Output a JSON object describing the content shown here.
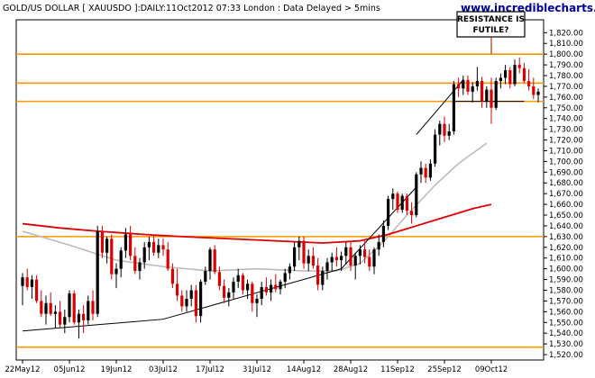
{
  "chart_data": {
    "type": "candlestick",
    "title": "GOLD/US DOLLAR [ XAUUSDO ]:DAILY:11Oct2012 07:33 London : Data Delayed > 5mins",
    "source": "www.incrediblecharts.com",
    "annotation": [
      "RESISTANCE IS",
      "FUTILE?"
    ],
    "ylim": [
      1515,
      1832
    ],
    "y_ticks": [
      1520,
      1530,
      1540,
      1550,
      1560,
      1570,
      1580,
      1590,
      1600,
      1610,
      1620,
      1630,
      1640,
      1650,
      1660,
      1670,
      1680,
      1690,
      1700,
      1710,
      1720,
      1730,
      1740,
      1750,
      1760,
      1770,
      1780,
      1790,
      1800,
      1810,
      1820
    ],
    "x_ticks": [
      "22May12",
      "05Jun12",
      "19Jun12",
      "03Jul12",
      "17Jul12",
      "31Jul12",
      "14Aug12",
      "28Aug12",
      "11Sep12",
      "25Sep12",
      "09Oct12"
    ],
    "grid": false,
    "up_color": "#000000",
    "down_color": "#dd0000",
    "candles": [
      [
        1584,
        1596,
        1566,
        1592
      ],
      [
        1592,
        1600,
        1580,
        1583
      ],
      [
        1583,
        1594,
        1572,
        1590
      ],
      [
        1590,
        1594,
        1568,
        1570
      ],
      [
        1570,
        1580,
        1555,
        1558
      ],
      [
        1558,
        1575,
        1548,
        1568
      ],
      [
        1568,
        1578,
        1556,
        1558
      ],
      [
        1558,
        1566,
        1545,
        1560
      ],
      [
        1560,
        1570,
        1545,
        1548
      ],
      [
        1548,
        1562,
        1540,
        1555
      ],
      [
        1555,
        1580,
        1550,
        1577
      ],
      [
        1577,
        1580,
        1548,
        1550
      ],
      [
        1550,
        1562,
        1535,
        1558
      ],
      [
        1558,
        1566,
        1540,
        1552
      ],
      [
        1552,
        1575,
        1548,
        1570
      ],
      [
        1570,
        1580,
        1552,
        1558
      ],
      [
        1558,
        1640,
        1555,
        1635
      ],
      [
        1635,
        1640,
        1610,
        1615
      ],
      [
        1615,
        1630,
        1605,
        1628
      ],
      [
        1628,
        1632,
        1590,
        1595
      ],
      [
        1595,
        1605,
        1582,
        1600
      ],
      [
        1600,
        1620,
        1592,
        1617
      ],
      [
        1617,
        1638,
        1610,
        1632
      ],
      [
        1632,
        1640,
        1608,
        1612
      ],
      [
        1612,
        1620,
        1595,
        1598
      ],
      [
        1598,
        1610,
        1590,
        1606
      ],
      [
        1606,
        1625,
        1600,
        1620
      ],
      [
        1620,
        1630,
        1608,
        1625
      ],
      [
        1625,
        1632,
        1612,
        1615
      ],
      [
        1615,
        1628,
        1610,
        1622
      ],
      [
        1622,
        1628,
        1612,
        1618
      ],
      [
        1618,
        1625,
        1598,
        1600
      ],
      [
        1600,
        1605,
        1582,
        1586
      ],
      [
        1586,
        1600,
        1570,
        1575
      ],
      [
        1575,
        1580,
        1560,
        1565
      ],
      [
        1565,
        1580,
        1560,
        1572
      ],
      [
        1572,
        1585,
        1565,
        1580
      ],
      [
        1580,
        1585,
        1550,
        1556
      ],
      [
        1556,
        1590,
        1550,
        1588
      ],
      [
        1588,
        1602,
        1585,
        1598
      ],
      [
        1598,
        1620,
        1590,
        1618
      ],
      [
        1618,
        1622,
        1595,
        1597
      ],
      [
        1597,
        1602,
        1580,
        1584
      ],
      [
        1584,
        1590,
        1568,
        1573
      ],
      [
        1573,
        1582,
        1565,
        1578
      ],
      [
        1578,
        1592,
        1572,
        1588
      ],
      [
        1588,
        1600,
        1582,
        1594
      ],
      [
        1594,
        1596,
        1576,
        1580
      ],
      [
        1580,
        1590,
        1572,
        1586
      ],
      [
        1586,
        1588,
        1560,
        1568
      ],
      [
        1568,
        1576,
        1555,
        1572
      ],
      [
        1572,
        1588,
        1566,
        1583
      ],
      [
        1583,
        1592,
        1575,
        1578
      ],
      [
        1578,
        1590,
        1570,
        1585
      ],
      [
        1585,
        1595,
        1578,
        1581
      ],
      [
        1581,
        1590,
        1576,
        1588
      ],
      [
        1588,
        1600,
        1582,
        1596
      ],
      [
        1596,
        1605,
        1590,
        1602
      ],
      [
        1602,
        1625,
        1598,
        1620
      ],
      [
        1620,
        1630,
        1608,
        1626
      ],
      [
        1626,
        1630,
        1600,
        1605
      ],
      [
        1605,
        1618,
        1598,
        1612
      ],
      [
        1612,
        1620,
        1600,
        1603
      ],
      [
        1603,
        1610,
        1580,
        1585
      ],
      [
        1585,
        1602,
        1580,
        1598
      ],
      [
        1598,
        1610,
        1590,
        1606
      ],
      [
        1606,
        1615,
        1598,
        1611
      ],
      [
        1611,
        1620,
        1602,
        1608
      ],
      [
        1608,
        1616,
        1598,
        1612
      ],
      [
        1612,
        1625,
        1604,
        1620
      ],
      [
        1620,
        1626,
        1598,
        1603
      ],
      [
        1603,
        1615,
        1590,
        1612
      ],
      [
        1612,
        1622,
        1604,
        1618
      ],
      [
        1618,
        1626,
        1605,
        1611
      ],
      [
        1611,
        1618,
        1598,
        1602
      ],
      [
        1602,
        1620,
        1595,
        1618
      ],
      [
        1618,
        1632,
        1612,
        1625
      ],
      [
        1625,
        1645,
        1620,
        1640
      ],
      [
        1640,
        1668,
        1636,
        1665
      ],
      [
        1665,
        1675,
        1655,
        1670
      ],
      [
        1670,
        1672,
        1652,
        1655
      ],
      [
        1655,
        1670,
        1652,
        1668
      ],
      [
        1668,
        1670,
        1650,
        1654
      ],
      [
        1654,
        1662,
        1642,
        1650
      ],
      [
        1650,
        1690,
        1648,
        1688
      ],
      [
        1688,
        1700,
        1680,
        1694
      ],
      [
        1694,
        1698,
        1680,
        1685
      ],
      [
        1685,
        1702,
        1682,
        1698
      ],
      [
        1698,
        1730,
        1695,
        1725
      ],
      [
        1725,
        1738,
        1715,
        1735
      ],
      [
        1735,
        1742,
        1718,
        1724
      ],
      [
        1724,
        1735,
        1720,
        1728
      ],
      [
        1728,
        1775,
        1725,
        1772
      ],
      [
        1772,
        1778,
        1760,
        1768
      ],
      [
        1768,
        1780,
        1762,
        1776
      ],
      [
        1776,
        1780,
        1762,
        1765
      ],
      [
        1765,
        1774,
        1755,
        1770
      ],
      [
        1770,
        1788,
        1766,
        1775
      ],
      [
        1775,
        1779,
        1750,
        1756
      ],
      [
        1756,
        1770,
        1750,
        1767
      ],
      [
        1767,
        1778,
        1735,
        1750
      ],
      [
        1750,
        1778,
        1748,
        1775
      ],
      [
        1775,
        1782,
        1768,
        1778
      ],
      [
        1778,
        1790,
        1772,
        1785
      ],
      [
        1785,
        1788,
        1768,
        1772
      ],
      [
        1772,
        1795,
        1770,
        1790
      ],
      [
        1790,
        1797,
        1782,
        1787
      ],
      [
        1787,
        1792,
        1773,
        1775
      ],
      [
        1775,
        1786,
        1766,
        1770
      ],
      [
        1770,
        1778,
        1758,
        1762
      ],
      [
        1762,
        1768,
        1755,
        1765
      ]
    ],
    "ma_short": [
      [
        0,
        1635
      ],
      [
        10,
        1622
      ],
      [
        20,
        1608
      ],
      [
        30,
        1602
      ],
      [
        40,
        1598
      ],
      [
        50,
        1600
      ],
      [
        60,
        1598
      ],
      [
        67,
        1598
      ],
      [
        72,
        1605
      ],
      [
        77,
        1625
      ],
      [
        82,
        1650
      ],
      [
        88,
        1678
      ],
      [
        93,
        1698
      ],
      [
        99,
        1717
      ]
    ],
    "ma_long": [
      [
        0,
        1642
      ],
      [
        8,
        1638
      ],
      [
        16,
        1635
      ],
      [
        26,
        1632
      ],
      [
        34,
        1630
      ],
      [
        44,
        1628
      ],
      [
        54,
        1626
      ],
      [
        64,
        1624
      ],
      [
        72,
        1626
      ],
      [
        78,
        1632
      ],
      [
        84,
        1640
      ],
      [
        90,
        1648
      ],
      [
        96,
        1656
      ],
      [
        100,
        1660
      ]
    ],
    "hlines": [
      1800,
      1773,
      1756,
      1630,
      1527
    ],
    "trendlines": [
      [
        [
          0,
          1542
        ],
        [
          30,
          1553
        ],
        [
          68,
          1600
        ]
      ],
      [
        [
          68,
          1600
        ],
        [
          84,
          1676
        ]
      ],
      [
        [
          84,
          1725
        ],
        [
          94,
          1776
        ]
      ],
      [
        [
          92,
          1756
        ],
        [
          107,
          1756
        ]
      ]
    ]
  }
}
